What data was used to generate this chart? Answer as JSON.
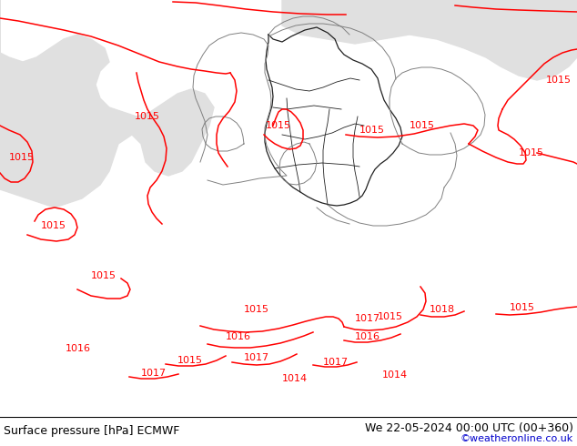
{
  "title_left": "Surface pressure [hPa] ECMWF",
  "title_right": "We 22-05-2024 00:00 UTC (00+360)",
  "credit": "©weatheronline.co.uk",
  "bg_green": "#c8f0a0",
  "bg_gray": "#d8d8d8",
  "bg_sea_gray": "#e0e0e0",
  "contour_color": "#ff0000",
  "border_dark": "#202020",
  "border_gray": "#808080",
  "footer_fontsize": 9,
  "credit_color": "#0000cc",
  "label_fs": 8
}
